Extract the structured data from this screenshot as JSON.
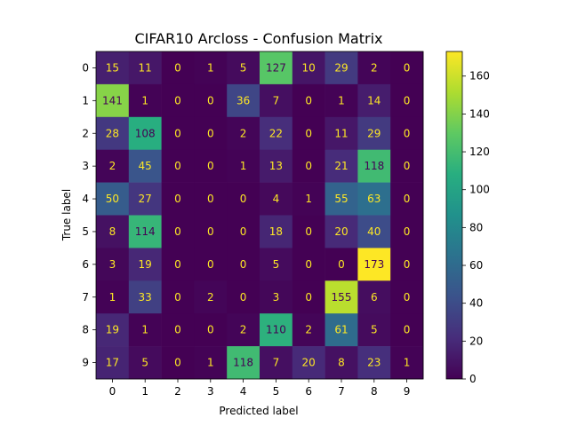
{
  "chart_data": {
    "type": "heatmap",
    "title": "CIFAR10 Arcloss - Confusion Matrix",
    "xlabel": "Predicted label",
    "ylabel": "True label",
    "x_categories": [
      "0",
      "1",
      "2",
      "3",
      "4",
      "5",
      "6",
      "7",
      "8",
      "9"
    ],
    "y_categories": [
      "0",
      "1",
      "2",
      "3",
      "4",
      "5",
      "6",
      "7",
      "8",
      "9"
    ],
    "values": [
      [
        15,
        11,
        0,
        1,
        5,
        127,
        10,
        29,
        2,
        0
      ],
      [
        141,
        1,
        0,
        0,
        36,
        7,
        0,
        1,
        14,
        0
      ],
      [
        28,
        108,
        0,
        0,
        2,
        22,
        0,
        11,
        29,
        0
      ],
      [
        2,
        45,
        0,
        0,
        1,
        13,
        0,
        21,
        118,
        0
      ],
      [
        50,
        27,
        0,
        0,
        0,
        4,
        1,
        55,
        63,
        0
      ],
      [
        8,
        114,
        0,
        0,
        0,
        18,
        0,
        20,
        40,
        0
      ],
      [
        3,
        19,
        0,
        0,
        0,
        5,
        0,
        0,
        173,
        0
      ],
      [
        1,
        33,
        0,
        2,
        0,
        3,
        0,
        155,
        6,
        0
      ],
      [
        19,
        1,
        0,
        0,
        2,
        110,
        2,
        61,
        5,
        0
      ],
      [
        17,
        5,
        0,
        1,
        118,
        7,
        20,
        8,
        23,
        1
      ]
    ],
    "colormap": "viridis",
    "color_range": [
      0,
      173
    ],
    "colorbar_ticks": [
      "0",
      "20",
      "40",
      "60",
      "80",
      "100",
      "120",
      "140",
      "160"
    ],
    "colorbar_tick_values": [
      0,
      20,
      40,
      60,
      80,
      100,
      120,
      140,
      160
    ],
    "text_colors": {
      "on_dark": "#fde725",
      "on_light": "#440154"
    }
  }
}
